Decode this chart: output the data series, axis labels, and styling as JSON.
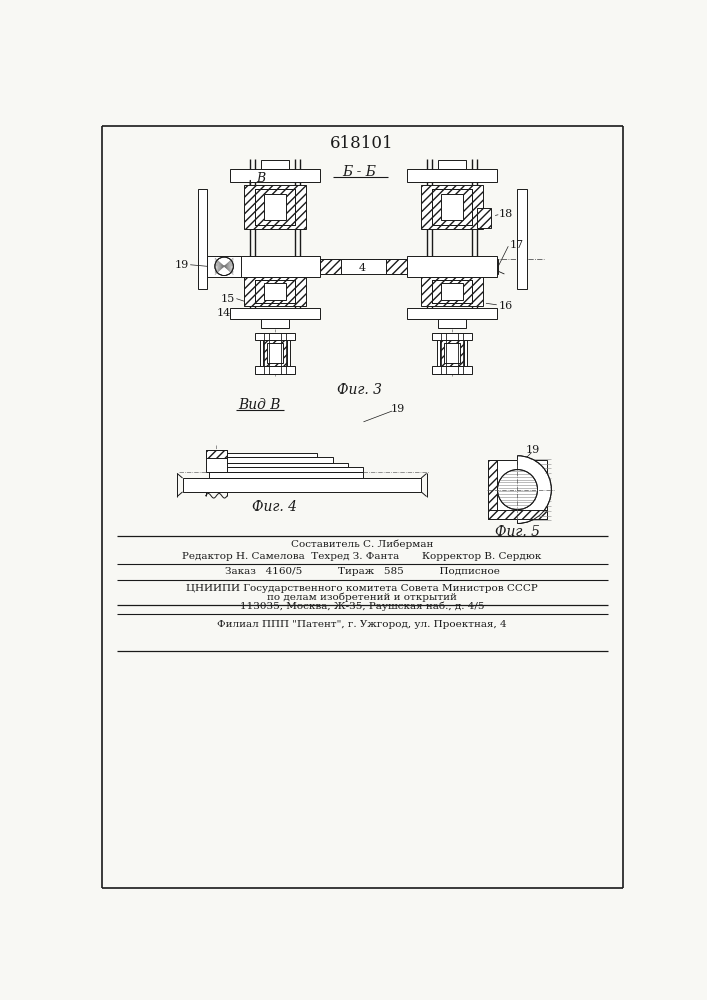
{
  "title": "618101",
  "fig3_label": "Б - Б",
  "fig3_caption": "Фиг. 3",
  "fig4_label": "Вид В",
  "fig4_caption": "Фиг. 4",
  "fig5_caption": "Фиг. 5",
  "arrow_label": "В",
  "label_14": "14",
  "label_15": "15",
  "label_16": "16",
  "label_17": "17",
  "label_18": "18",
  "label_19": "19",
  "label_4": "4",
  "footer_line1": "Составитель С. Либерман",
  "footer_line2": "Редактор Н. Самелова  Техред З. Фанта       Корректор В. Сердюк",
  "footer_line3": "Заказ   4160/5           Тираж   585           Подписное",
  "footer_line4": "ЦНИИПИ Государственного комитета Совета Министров СССР",
  "footer_line5": "по делам изобретений и открытий",
  "footer_line6": "113035, Москва, Ж-35, Раушская наб., д. 4/5",
  "footer_line7": "Филиал ППП \"Патент\", г. Ужгород, ул. Проектная, 4",
  "bg_color": "#f8f8f4",
  "line_color": "#1a1a1a"
}
